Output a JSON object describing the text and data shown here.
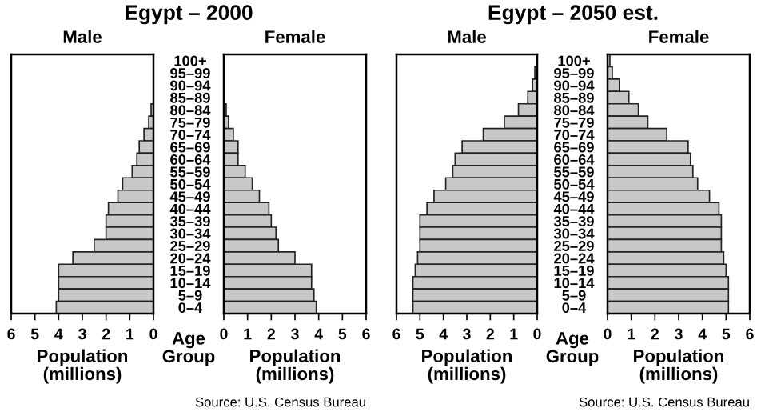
{
  "chart_data": [
    {
      "type": "bar",
      "orientation": "horizontal",
      "title": "Egypt – 2000",
      "subtitle": "Male",
      "xlabel": "Population\n(millions)",
      "ylabel": "Age\nGroup",
      "categories": [
        "100+",
        "95–99",
        "90–94",
        "85–89",
        "80–84",
        "75–79",
        "70–74",
        "65–69",
        "60–64",
        "55–59",
        "50–54",
        "45–49",
        "40–44",
        "35–39",
        "30–34",
        "25–29",
        "20–24",
        "15–19",
        "10–14",
        "5–9",
        "0–4"
      ],
      "values": [
        0,
        0,
        0,
        0,
        0.1,
        0.2,
        0.4,
        0.6,
        0.7,
        0.9,
        1.3,
        1.5,
        1.9,
        2.0,
        2.0,
        2.5,
        3.4,
        4.0,
        4.0,
        4.0,
        4.1
      ],
      "color": "#c8c8c8",
      "xlim": [
        6,
        0
      ],
      "xticks": [
        6,
        5,
        4,
        3,
        2,
        1,
        0
      ],
      "grid": false,
      "legend": false
    },
    {
      "type": "bar",
      "orientation": "horizontal",
      "subtitle": "Female",
      "xlabel": "Population\n(millions)",
      "tick_labels": "x",
      "annotations": [
        "Source: U.S. Census Bureau"
      ],
      "values": [
        0,
        0,
        0,
        0,
        0.1,
        0.2,
        0.4,
        0.6,
        0.6,
        0.9,
        1.2,
        1.5,
        1.9,
        2.0,
        2.2,
        2.3,
        3.0,
        3.7,
        3.7,
        3.8,
        3.9
      ],
      "color": "#c8c8c8",
      "xlim": [
        0,
        6
      ],
      "xticks": [
        0,
        1,
        2,
        3,
        4,
        5,
        6
      ],
      "grid": false,
      "legend": false
    },
    {
      "type": "bar",
      "orientation": "horizontal",
      "title": "Egypt – 2050 est.",
      "subtitle": "Male",
      "xlabel": "Population\n(millions)",
      "ylabel": "Age\nGroup",
      "categories": [
        "100+",
        "95–99",
        "90–94",
        "85–89",
        "80–84",
        "75–79",
        "70–74",
        "65–69",
        "60–64",
        "55–59",
        "50–54",
        "45–49",
        "40–44",
        "35–39",
        "30–34",
        "25–29",
        "20–24",
        "15–19",
        "10–14",
        "5–9",
        "0–4"
      ],
      "values": [
        0,
        0.1,
        0.2,
        0.4,
        0.8,
        1.4,
        2.3,
        3.2,
        3.5,
        3.6,
        3.9,
        4.4,
        4.7,
        5.0,
        5.0,
        5.0,
        5.1,
        5.2,
        5.3,
        5.3,
        5.3
      ],
      "color": "#c8c8c8",
      "xlim": [
        6,
        0
      ],
      "xticks": [
        6,
        5,
        4,
        3,
        2,
        1,
        0
      ],
      "grid": false,
      "legend": false
    },
    {
      "type": "bar",
      "orientation": "horizontal",
      "subtitle": "Female",
      "xlabel": "Population\n(millions)",
      "tick_labels": "x",
      "annotations": [
        "Source: U.S. Census Bureau"
      ],
      "values": [
        0.1,
        0.2,
        0.5,
        0.9,
        1.3,
        1.7,
        2.5,
        3.4,
        3.5,
        3.6,
        3.8,
        4.3,
        4.7,
        4.8,
        4.8,
        4.8,
        4.9,
        5.0,
        5.1,
        5.1,
        5.1
      ],
      "color": "#c8c8c8",
      "xlim": [
        0,
        6
      ],
      "xticks": [
        0,
        1,
        2,
        3,
        4,
        5,
        6
      ],
      "grid": false,
      "legend": false
    }
  ]
}
